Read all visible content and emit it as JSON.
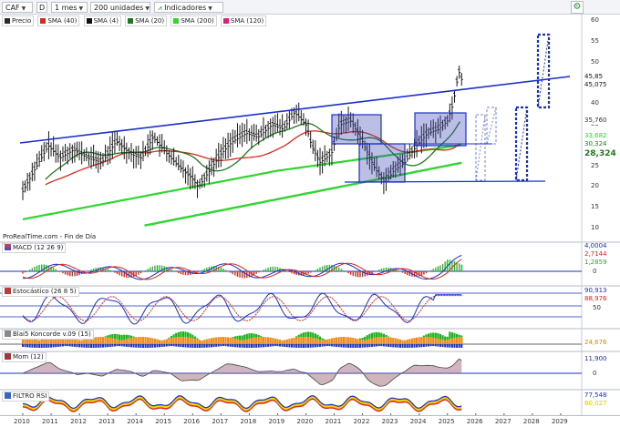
{
  "toolbar": {
    "symbol": "CAF",
    "type_btn": "D",
    "period": "1 mes",
    "units": "200 unidades",
    "indicators": "Indicadores"
  },
  "main_legend": [
    {
      "label": "Precio",
      "color": "#2a2a2a"
    },
    {
      "label": "SMA (40)",
      "color": "#d72a1e"
    },
    {
      "label": "SMA (4)",
      "color": "#111111"
    },
    {
      "label": "SMA (20)",
      "color": "#1f7a1f"
    },
    {
      "label": "SMA (200)",
      "color": "#2fd62f"
    },
    {
      "label": "SMA (120)",
      "color": "#e0207a"
    }
  ],
  "source": "ProRealTime.com - Fin de Día",
  "price_axis": [
    "60",
    "55",
    "50",
    "45",
    "40",
    "35",
    "30",
    "25",
    "20",
    "15",
    "10"
  ],
  "price_tags": [
    {
      "text": "45,85",
      "bg": "#ffffff",
      "fg": "#111111"
    },
    {
      "text": "45,075",
      "bg": "#ffffff",
      "fg": "#111111"
    },
    {
      "text": "35,760",
      "bg": "#ffffff",
      "fg": "#333333"
    },
    {
      "text": "33,682",
      "bg": "#ffffff",
      "fg": "#2fd62f"
    },
    {
      "text": "30,324",
      "bg": "#ffffff",
      "fg": "#1f7a1f"
    },
    {
      "text": "28,324",
      "bg": "#ffffff",
      "fg": "#1f7a1f"
    }
  ],
  "macd": {
    "title": "MACD (12 26 9)",
    "tags": [
      "4,0004",
      "2,7144",
      "1,2859",
      "0"
    ]
  },
  "stoch": {
    "title": "Estocástico (26 8 5)",
    "tags": [
      "90,913",
      "88,976",
      "50"
    ]
  },
  "koncorde": {
    "title": "Blai5 Koncorde v.09 (15)",
    "tags": [
      "24,676"
    ]
  },
  "mom": {
    "title": "Mom (12)",
    "tags": [
      "11,900",
      "0"
    ]
  },
  "rsi": {
    "title": "FILTRO RSI",
    "tags": [
      "77,548",
      "60,027"
    ]
  },
  "x_axis": [
    "2010",
    "2011",
    "2012",
    "2013",
    "2014",
    "2015",
    "2016",
    "2017",
    "2018",
    "2019",
    "2020",
    "2021",
    "2022",
    "2023",
    "2024",
    "2025",
    "2026",
    "2027",
    "2028",
    "2029"
  ],
  "colors": {
    "accent": "#1a2fc9",
    "sma200": "#2fd62f",
    "sma40": "#d72a1e",
    "sma20": "#1f7a1f"
  }
}
